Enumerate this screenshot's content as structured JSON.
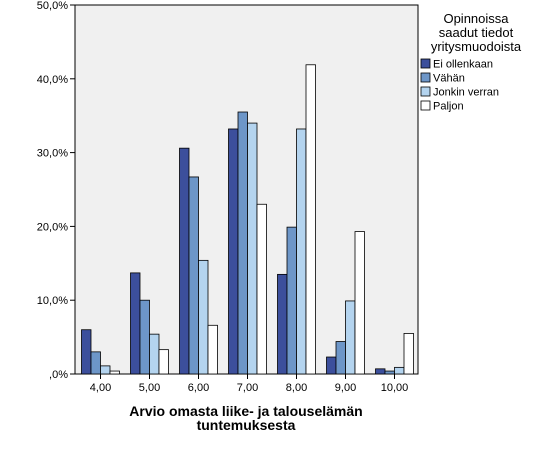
{
  "chart_data": {
    "type": "bar",
    "title": "",
    "xlabel": "Arvio omasta liike- ja talouselämän tuntemuksesta",
    "xlabel_lines": [
      "Arvio omasta liike- ja talouselämän",
      "tuntemuksesta"
    ],
    "ylabel": "",
    "ylim": [
      0,
      50
    ],
    "y_ticks": [
      0,
      10,
      20,
      30,
      40,
      50
    ],
    "y_tick_labels": [
      ",0%",
      "10,0%",
      "20,0%",
      "30,0%",
      "40,0%",
      "50,0%"
    ],
    "categories": [
      "4,00",
      "5,00",
      "6,00",
      "7,00",
      "8,00",
      "9,00",
      "10,00"
    ],
    "grid": false,
    "legend_position": "top-right",
    "legend_title": "Opinnoissa saadut tiedot yritysmuodoista",
    "legend_title_lines": [
      "Opinnoissa",
      "saadut tiedot",
      "yritysmuodoista"
    ],
    "series": [
      {
        "name": "Ei ollenkaan",
        "color": "#3c4f9c",
        "values": [
          6.0,
          13.7,
          30.6,
          33.2,
          13.5,
          2.3,
          0.7
        ]
      },
      {
        "name": "Vähän",
        "color": "#6d96c8",
        "values": [
          3.0,
          10.0,
          26.7,
          35.5,
          19.9,
          4.4,
          0.4
        ]
      },
      {
        "name": "Jonkin verran",
        "color": "#b4d4ef",
        "values": [
          1.1,
          5.4,
          15.4,
          34.0,
          33.2,
          9.9,
          0.9
        ]
      },
      {
        "name": "Paljon",
        "color": "#ffffff",
        "values": [
          0.4,
          3.3,
          6.6,
          23.0,
          41.9,
          19.3,
          5.5
        ]
      }
    ],
    "plot_background": "#f0f0f0"
  }
}
